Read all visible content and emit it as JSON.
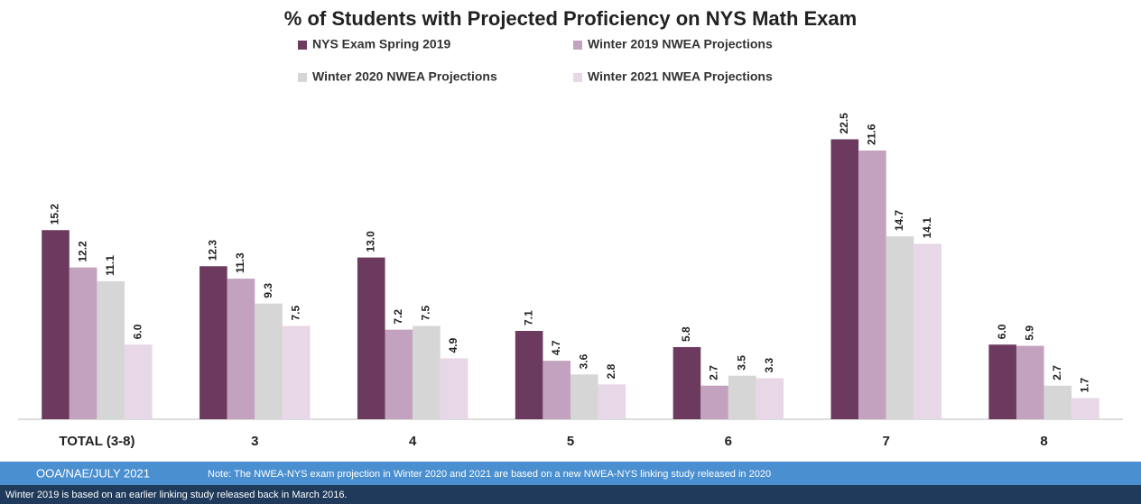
{
  "chart_data": {
    "type": "bar",
    "title": "% of Students with Projected Proficiency on NYS Math Exam",
    "categories": [
      "TOTAL (3-8)",
      "3",
      "4",
      "5",
      "6",
      "7",
      "8"
    ],
    "series": [
      {
        "name": "NYS Exam Spring 2019",
        "color": "#6b3a5e",
        "values": [
          15.2,
          12.3,
          13.0,
          7.1,
          5.8,
          22.5,
          6.0
        ],
        "value_labels": [
          "15.2",
          "12.3",
          "13.0",
          "7.1",
          "5.8",
          "22.5",
          "6.0"
        ]
      },
      {
        "name": "Winter 2019 NWEA Projections",
        "color": "#c3a2c0",
        "values": [
          12.2,
          11.3,
          7.2,
          4.7,
          2.7,
          21.6,
          5.9
        ],
        "value_labels": [
          "12.2",
          "11.3",
          "7.2",
          "4.7",
          "2.7",
          "21.6",
          "5.9"
        ]
      },
      {
        "name": "Winter 2020 NWEA Projections",
        "color": "#d6d6d6",
        "values": [
          11.1,
          9.3,
          7.5,
          3.6,
          3.5,
          14.7,
          2.7
        ],
        "value_labels": [
          "11.1",
          "9.3",
          "7.5",
          "3.6",
          "3.5",
          "14.7",
          "2.7"
        ]
      },
      {
        "name": "Winter 2021 NWEA Projections",
        "color": "#e8d7e6",
        "values": [
          6.0,
          7.5,
          4.9,
          2.8,
          3.3,
          14.1,
          1.7
        ],
        "value_labels": [
          "6.0",
          "7.5",
          "4.9",
          "2.8",
          "3.3",
          "14.1",
          "1.7"
        ]
      }
    ],
    "ylim": [
      0,
      25
    ],
    "source": "OOA/NAE/JULY 2021",
    "notes": [
      "Note: The NWEA-NYS exam projection in Winter 2020 and 2021 are based on a new NWEA-NYS linking study released in 2020",
      "Winter 2019 is based on an earlier linking study released back in March 2016."
    ]
  }
}
